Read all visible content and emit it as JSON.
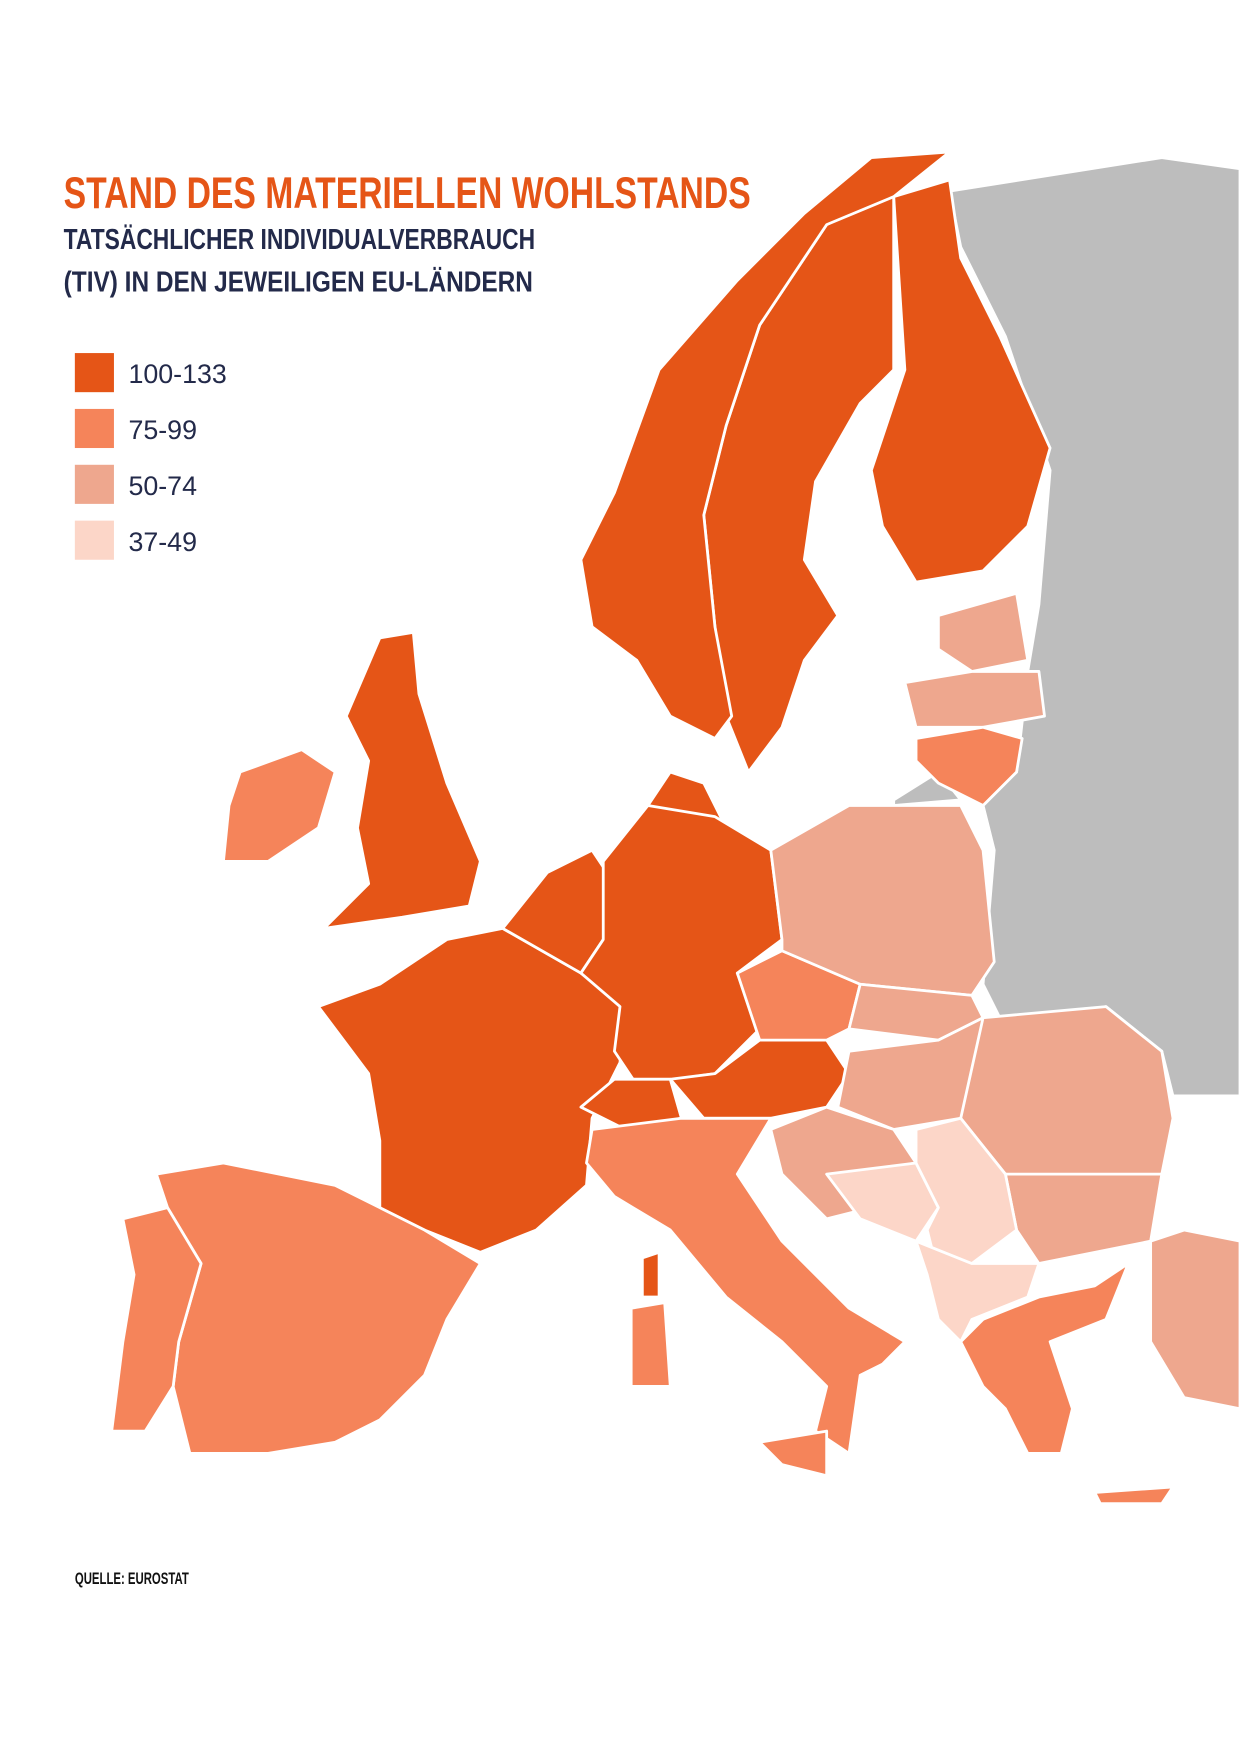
{
  "title": "STAND DES MATERIELLEN WOHLSTANDS",
  "subtitle": [
    "TATSÄCHLICHER INDIVIDUALVERBRAUCH",
    "(TIV) IN DEN JEWEILIGEN EU-LÄNDERN"
  ],
  "legend": [
    {
      "label": "100-133",
      "color": "#e55517"
    },
    {
      "label": "75-99",
      "color": "#f5845a"
    },
    {
      "label": "50-74",
      "color": "#eea78e"
    },
    {
      "label": "37-49",
      "color": "#fcd6c8"
    }
  ],
  "source": "QUELLE: EUROSTAT"
}
